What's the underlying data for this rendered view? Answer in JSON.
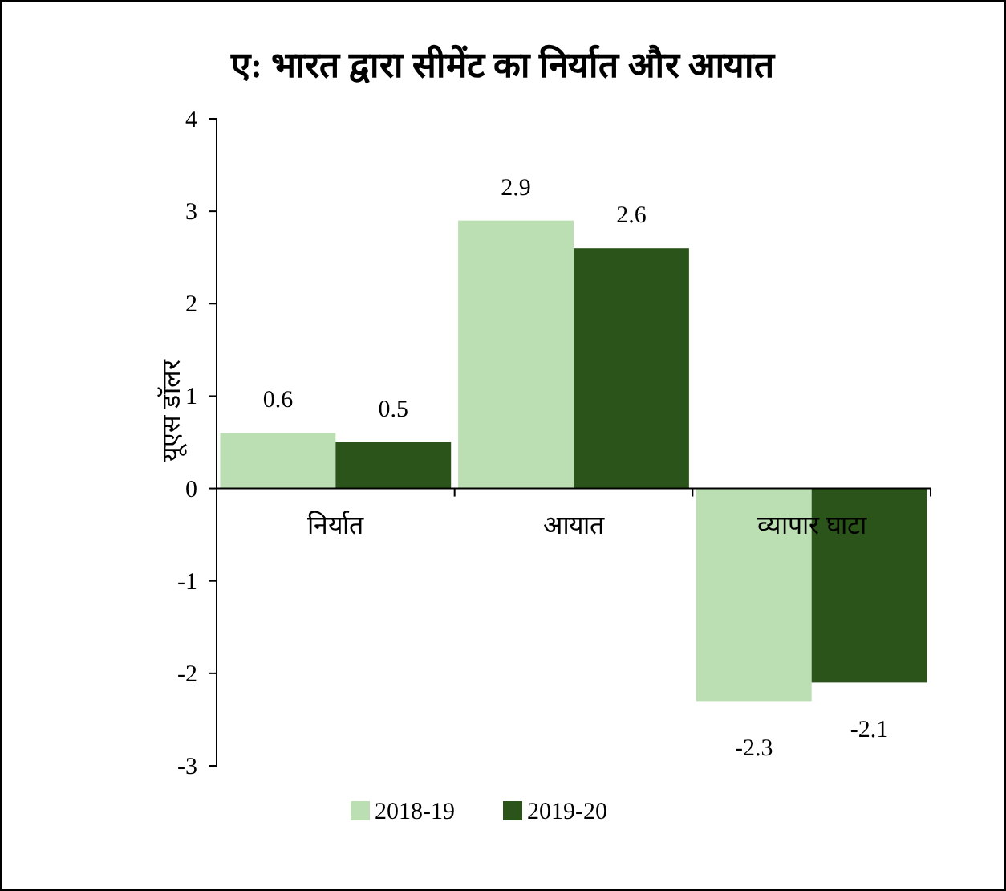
{
  "chart_data": {
    "type": "bar",
    "title": "ए: भारत द्वारा सीमेंट का निर्यात और आयात",
    "ylabel": "यूएस डॉलर",
    "categories": [
      "निर्यात",
      "आयात",
      "व्यापार घाटा"
    ],
    "series": [
      {
        "name": "2018-19",
        "color": "#bbdfb2",
        "values": [
          0.6,
          2.9,
          -2.3
        ]
      },
      {
        "name": "2019-20",
        "color": "#2a5419",
        "values": [
          0.5,
          2.6,
          -2.1
        ]
      }
    ],
    "ylim": [
      -3,
      4
    ],
    "yticks": [
      -3,
      -2,
      -1,
      0,
      1,
      2,
      3,
      4
    ],
    "data_labels": true,
    "grid": false,
    "legend": "bottom"
  }
}
